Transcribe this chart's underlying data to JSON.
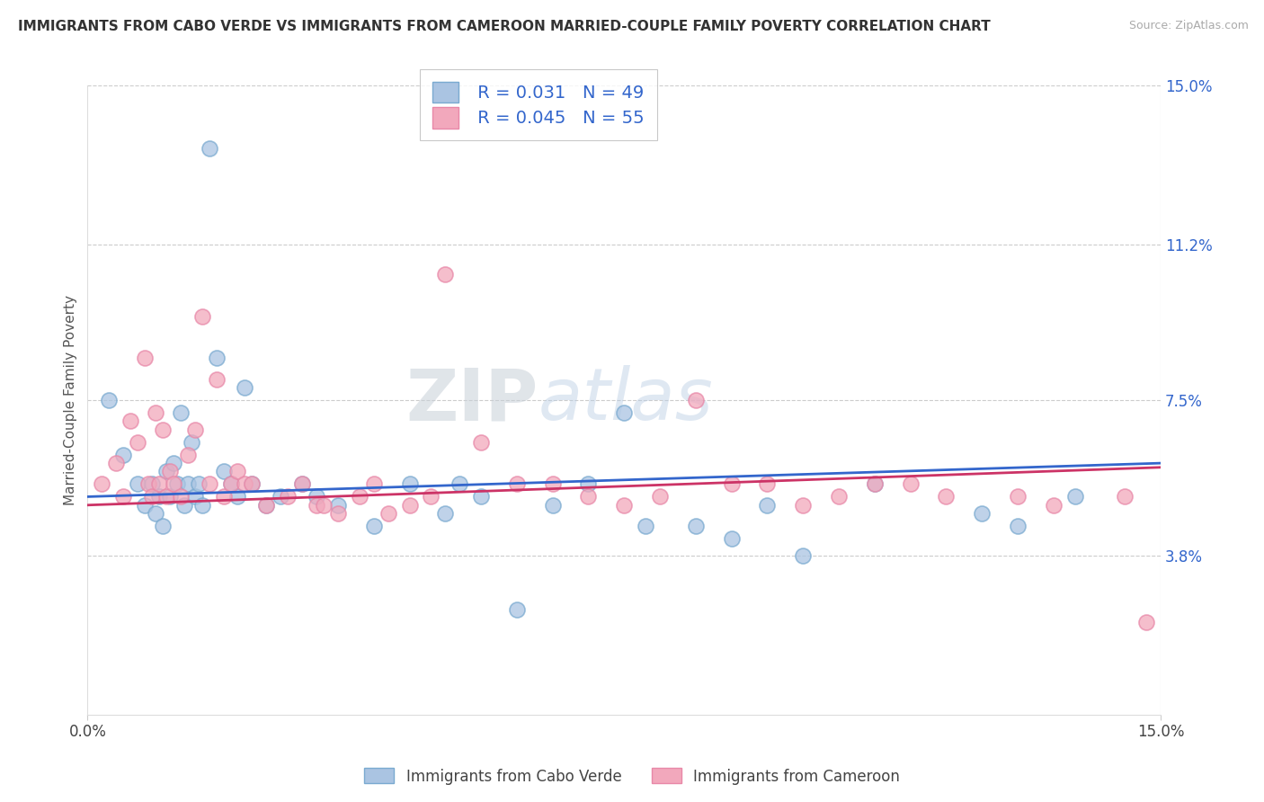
{
  "title": "IMMIGRANTS FROM CABO VERDE VS IMMIGRANTS FROM CAMEROON MARRIED-COUPLE FAMILY POVERTY CORRELATION CHART",
  "source": "Source: ZipAtlas.com",
  "ylabel": "Married-Couple Family Poverty",
  "xlim": [
    0.0,
    15.0
  ],
  "ylim": [
    0.0,
    15.0
  ],
  "xticks": [
    0.0,
    15.0
  ],
  "xticklabels": [
    "0.0%",
    "15.0%"
  ],
  "yticks_right": [
    3.8,
    7.5,
    11.2,
    15.0
  ],
  "yticklabels_right": [
    "3.8%",
    "7.5%",
    "11.2%",
    "15.0%"
  ],
  "blue_R": 0.031,
  "blue_N": 49,
  "pink_R": 0.045,
  "pink_N": 55,
  "blue_color": "#aac4e2",
  "pink_color": "#f2a8bc",
  "blue_edge_color": "#7aaad0",
  "pink_edge_color": "#e888a8",
  "blue_line_color": "#3366cc",
  "pink_line_color": "#cc3366",
  "watermark_ZIP": "ZIP",
  "watermark_atlas": "atlas",
  "legend1_label": "Immigrants from Cabo Verde",
  "legend2_label": "Immigrants from Cameroon",
  "blue_x": [
    0.3,
    0.5,
    0.7,
    0.8,
    0.9,
    0.95,
    1.0,
    1.05,
    1.1,
    1.15,
    1.2,
    1.25,
    1.3,
    1.35,
    1.4,
    1.45,
    1.5,
    1.55,
    1.6,
    1.7,
    1.8,
    1.9,
    2.0,
    2.1,
    2.2,
    2.3,
    2.5,
    2.7,
    3.0,
    3.2,
    3.5,
    4.0,
    4.5,
    5.0,
    5.5,
    6.5,
    7.0,
    7.5,
    8.5,
    9.0,
    9.5,
    10.0,
    11.0,
    12.5,
    13.0,
    13.8,
    5.2,
    7.8,
    6.0
  ],
  "blue_y": [
    7.5,
    6.2,
    5.5,
    5.0,
    5.5,
    4.8,
    5.2,
    4.5,
    5.8,
    5.2,
    6.0,
    5.5,
    7.2,
    5.0,
    5.5,
    6.5,
    5.2,
    5.5,
    5.0,
    13.5,
    8.5,
    5.8,
    5.5,
    5.2,
    7.8,
    5.5,
    5.0,
    5.2,
    5.5,
    5.2,
    5.0,
    4.5,
    5.5,
    4.8,
    5.2,
    5.0,
    5.5,
    7.2,
    4.5,
    4.2,
    5.0,
    3.8,
    5.5,
    4.8,
    4.5,
    5.2,
    5.5,
    4.5,
    2.5
  ],
  "pink_x": [
    0.2,
    0.4,
    0.5,
    0.6,
    0.7,
    0.8,
    0.85,
    0.9,
    0.95,
    1.0,
    1.05,
    1.1,
    1.15,
    1.2,
    1.3,
    1.4,
    1.5,
    1.6,
    1.7,
    1.8,
    1.9,
    2.0,
    2.1,
    2.2,
    2.5,
    2.8,
    3.0,
    3.2,
    3.5,
    3.8,
    4.0,
    4.2,
    4.5,
    5.0,
    5.5,
    6.0,
    7.0,
    7.5,
    8.5,
    9.5,
    10.5,
    11.0,
    12.0,
    13.5,
    14.5,
    2.3,
    3.3,
    4.8,
    6.5,
    8.0,
    9.0,
    10.0,
    11.5,
    13.0,
    14.8
  ],
  "pink_y": [
    5.5,
    6.0,
    5.2,
    7.0,
    6.5,
    8.5,
    5.5,
    5.2,
    7.2,
    5.5,
    6.8,
    5.2,
    5.8,
    5.5,
    5.2,
    6.2,
    6.8,
    9.5,
    5.5,
    8.0,
    5.2,
    5.5,
    5.8,
    5.5,
    5.0,
    5.2,
    5.5,
    5.0,
    4.8,
    5.2,
    5.5,
    4.8,
    5.0,
    10.5,
    6.5,
    5.5,
    5.2,
    5.0,
    7.5,
    5.5,
    5.2,
    5.5,
    5.2,
    5.0,
    5.2,
    5.5,
    5.0,
    5.2,
    5.5,
    5.2,
    5.5,
    5.0,
    5.5,
    5.2,
    2.2
  ]
}
